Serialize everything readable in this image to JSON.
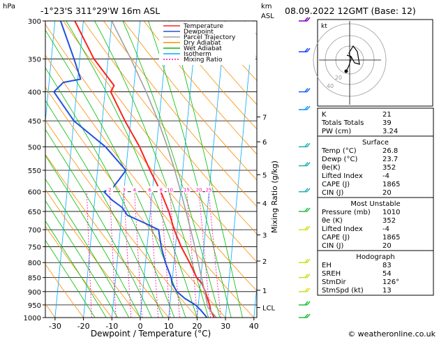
{
  "header": {
    "location": "-1°23'S 311°29'W 16m ASL",
    "hpa_unit": "hPa",
    "km_unit": "km",
    "asl_unit": "ASL",
    "datetime": "08.09.2022 12GMT (Base: 12)"
  },
  "axes": {
    "xlabel": "Dewpoint / Temperature (°C)",
    "mixing_ratio_label": "Mixing Ratio (g/kg)",
    "pressure_ticks": [
      300,
      350,
      400,
      450,
      500,
      550,
      600,
      650,
      700,
      750,
      800,
      850,
      900,
      950,
      1000
    ],
    "temp_ticks": [
      "-30",
      "-20",
      "-10",
      "0",
      "10",
      "20",
      "30",
      "40"
    ],
    "km_ticks": [
      {
        "label": "7",
        "p": 443
      },
      {
        "label": "6",
        "p": 490
      },
      {
        "label": "5",
        "p": 560
      },
      {
        "label": "4",
        "p": 628
      },
      {
        "label": "3",
        "p": 715
      },
      {
        "label": "2",
        "p": 795
      },
      {
        "label": "1",
        "p": 895
      },
      {
        "label": "LCL",
        "p": 960
      }
    ],
    "mixing_ratio_labels": [
      "2",
      "3",
      "4",
      "6",
      "8",
      "10",
      "15",
      "20",
      "25"
    ]
  },
  "legend": [
    {
      "label": "Temperature",
      "color": "#ff2020",
      "dash": ""
    },
    {
      "label": "Dewpoint",
      "color": "#2050e0",
      "dash": ""
    },
    {
      "label": "Parcel Trajectory",
      "color": "#a0a0a0",
      "dash": ""
    },
    {
      "label": "Dry Adiabat",
      "color": "#ff8c00",
      "dash": ""
    },
    {
      "label": "Wet Adiabat",
      "color": "#00bb00",
      "dash": ""
    },
    {
      "label": "Isotherm",
      "color": "#00aaff",
      "dash": ""
    },
    {
      "label": "Mixing Ratio",
      "color": "#ff00aa",
      "dash": "2,2"
    }
  ],
  "chart_data": {
    "type": "line",
    "title": "",
    "xlabel": "Dewpoint / Temperature (°C)",
    "ylabel": "hPa",
    "xlim": [
      -35,
      40
    ],
    "ylim": [
      1000,
      300
    ],
    "log_scale_y": true,
    "series": [
      {
        "name": "Temperature",
        "color": "#ff2020",
        "p": [
          1000,
          970,
          950,
          925,
          900,
          870,
          850,
          800,
          750,
          700,
          650,
          600,
          550,
          500,
          450,
          400,
          390,
          350,
          300
        ],
        "t": [
          26,
          24.5,
          24,
          23,
          22,
          20.5,
          18.5,
          15.5,
          12,
          9,
          6.5,
          3,
          -1.5,
          -6,
          -12,
          -18,
          -17,
          -25,
          -33
        ]
      },
      {
        "name": "Dewpoint",
        "color": "#2050e0",
        "p": [
          1000,
          970,
          950,
          925,
          900,
          870,
          850,
          800,
          750,
          700,
          680,
          660,
          640,
          620,
          600,
          590,
          570,
          550,
          500,
          450,
          400,
          385,
          380,
          350,
          300
        ],
        "t": [
          23.5,
          21,
          19,
          15,
          12,
          10,
          9.5,
          7,
          5,
          3.5,
          -2,
          -8,
          -10,
          -14,
          -17,
          -14,
          -12,
          -10,
          -18,
          -30,
          -38,
          -35,
          -29,
          -32,
          -38
        ]
      },
      {
        "name": "Parcel Trajectory",
        "color": "#a0a0a0",
        "p": [
          1000,
          960,
          900,
          850,
          800,
          750,
          700,
          650,
          600,
          550,
          500,
          450,
          400,
          350,
          300
        ],
        "t": [
          26.8,
          23.5,
          21.8,
          20.2,
          18.6,
          16.8,
          14.8,
          12.5,
          10,
          7.2,
          3.8,
          -0.3,
          -5.5,
          -12,
          -20
        ]
      }
    ]
  },
  "hodograph": {
    "label": "kt",
    "ring_labels": [
      "20",
      "40"
    ],
    "color": "#000000"
  },
  "wind_barbs": [
    {
      "p": 300,
      "color": "#8000c0"
    },
    {
      "p": 340,
      "color": "#1040ff"
    },
    {
      "p": 400,
      "color": "#1060ff"
    },
    {
      "p": 430,
      "color": "#1090ff"
    },
    {
      "p": 500,
      "color": "#20b0b0"
    },
    {
      "p": 540,
      "color": "#20b0b0"
    },
    {
      "p": 600,
      "color": "#20b0b0"
    },
    {
      "p": 650,
      "color": "#20c040"
    },
    {
      "p": 700,
      "color": "#d0e020"
    },
    {
      "p": 800,
      "color": "#d0e020"
    },
    {
      "p": 850,
      "color": "#d0e020"
    },
    {
      "p": 900,
      "color": "#d0e020"
    },
    {
      "p": 950,
      "color": "#20c040"
    },
    {
      "p": 1000,
      "color": "#20c040"
    }
  ],
  "indices": {
    "basic": [
      {
        "label": "K",
        "value": "21"
      },
      {
        "label": "Totals Totals",
        "value": "39"
      },
      {
        "label": "PW (cm)",
        "value": "3.24"
      }
    ],
    "surface": {
      "title": "Surface",
      "rows": [
        {
          "label": "Temp (°C)",
          "value": "26.8"
        },
        {
          "label": "Dewp (°C)",
          "value": "23.7"
        },
        {
          "label": "θe(K)",
          "value": "352"
        },
        {
          "label": "Lifted Index",
          "value": "-4"
        },
        {
          "label": "CAPE (J)",
          "value": "1865"
        },
        {
          "label": "CIN (J)",
          "value": "20"
        }
      ]
    },
    "unstable": {
      "title": "Most Unstable",
      "rows": [
        {
          "label": "Pressure (mb)",
          "value": "1010"
        },
        {
          "label": "θe (K)",
          "value": "352"
        },
        {
          "label": "Lifted Index",
          "value": "-4"
        },
        {
          "label": "CAPE (J)",
          "value": "1865"
        },
        {
          "label": "CIN (J)",
          "value": "20"
        }
      ]
    },
    "hodograph_table": {
      "title": "Hodograph",
      "rows": [
        {
          "label": "EH",
          "value": "83"
        },
        {
          "label": "SREH",
          "value": "54"
        },
        {
          "label": "StmDir",
          "value": "126°"
        },
        {
          "label": "StmSpd (kt)",
          "value": "13"
        }
      ]
    }
  },
  "footer": {
    "credit": "© weatheronline.co.uk"
  }
}
